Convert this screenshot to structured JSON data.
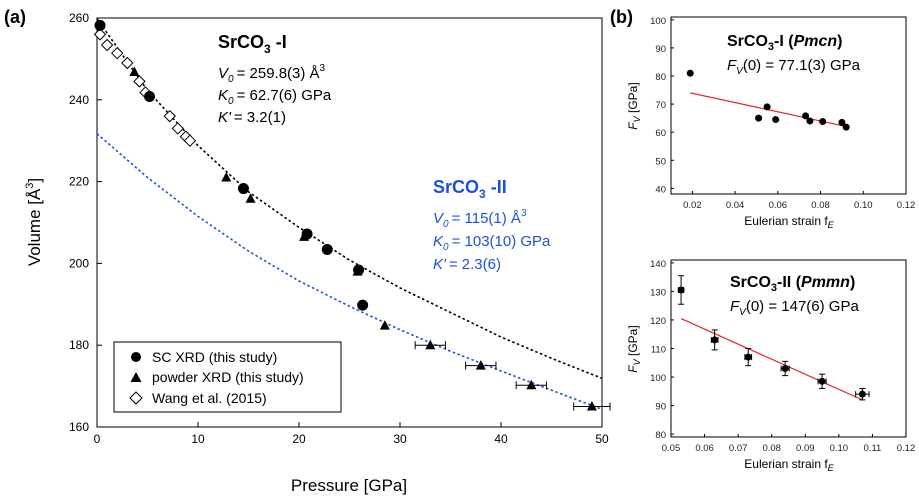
{
  "figure": {
    "panel_a_label": "(a)",
    "panel_b_label": "(b)"
  },
  "chart_data": [
    {
      "id": "a",
      "type": "scatter",
      "xlabel": "Pressure [GPa]",
      "ylabel": "Volume [Å³]",
      "xlim": [
        0,
        50
      ],
      "ylim": [
        160,
        260
      ],
      "xticks": [
        "0",
        "10",
        "20",
        "30",
        "40",
        "50"
      ],
      "yticks": [
        "160",
        "180",
        "200",
        "220",
        "240",
        "260"
      ],
      "annotations": {
        "phase1": {
          "name": "SrCO",
          "sub": "3",
          "suffix": " -I",
          "v0": "= 259.8(3) Å",
          "v0_sup": "3",
          "k0": "= 62.7(6) GPa",
          "kp": "= 3.2(1)"
        },
        "phase2": {
          "name": "SrCO",
          "sub": "3",
          "suffix": " -II",
          "v0": "= 115(1) Å",
          "v0_sup": "3",
          "k0": "= 103(10) GPa",
          "kp": "= 2.3(6)",
          "color": "#1f4fe0"
        },
        "sym_v": "V",
        "sym_v_sub": "0",
        "sym_k": "K",
        "sym_k_sub": "0",
        "sym_kp": "K'"
      },
      "legend": [
        "SC XRD (this study)",
        "powder XRD (this study)",
        "Wang et al. (2015)"
      ],
      "series": [
        {
          "name": "SC XRD (this study)",
          "marker": "circle",
          "points": [
            [
              0.3,
              258.2
            ],
            [
              5.2,
              240.8
            ],
            [
              14.5,
              218.3
            ],
            [
              20.8,
              207.2
            ],
            [
              22.8,
              203.4
            ],
            [
              25.9,
              198.4
            ],
            [
              26.3,
              189.8
            ]
          ]
        },
        {
          "name": "powder XRD (this study)",
          "marker": "triangle",
          "points": [
            [
              3.7,
              246.8
            ],
            [
              12.8,
              221.0
            ],
            [
              15.2,
              215.8
            ],
            [
              20.5,
              206.5
            ],
            [
              25.8,
              198.0
            ],
            [
              28.5,
              184.8
            ],
            [
              33.0,
              180.0
            ],
            [
              38.0,
              175.0
            ],
            [
              43.0,
              170.2
            ],
            [
              49.0,
              165.0
            ]
          ],
          "xerr": [
            0,
            0,
            0,
            0,
            0,
            0,
            1.5,
            1.5,
            1.5,
            1.8
          ]
        },
        {
          "name": "Wang et al. (2015)",
          "marker": "diamond",
          "points": [
            [
              0.3,
              256.0
            ],
            [
              1.0,
              253.4
            ],
            [
              2.0,
              251.4
            ],
            [
              3.0,
              249.0
            ],
            [
              4.2,
              244.5
            ],
            [
              4.8,
              241.8
            ],
            [
              7.2,
              236.0
            ],
            [
              8.0,
              233.0
            ],
            [
              8.8,
              231.0
            ],
            [
              9.2,
              230.0
            ]
          ]
        }
      ],
      "fits": [
        {
          "name": "SrCO3-I BM3",
          "color": "#000000",
          "style": "dotted",
          "curve": [
            [
              0,
              259.8
            ],
            [
              5,
              242.3
            ],
            [
              10,
              228.8
            ],
            [
              15,
              217.5
            ],
            [
              20,
              208.8
            ],
            [
              25,
              200.8
            ],
            [
              30,
              194.0
            ],
            [
              35,
              188.0
            ],
            [
              40,
              182.0
            ],
            [
              45,
              176.8
            ],
            [
              50,
              171.9
            ]
          ]
        },
        {
          "name": "SrCO3-II BM3",
          "color": "#1f4fe0",
          "style": "dotted",
          "curve": [
            [
              0,
              231.7
            ],
            [
              5,
              221.0
            ],
            [
              10,
              211.5
            ],
            [
              15,
              203.0
            ],
            [
              20,
              195.7
            ],
            [
              25,
              189.5
            ],
            [
              30,
              183.8
            ],
            [
              35,
              178.5
            ],
            [
              40,
              173.7
            ],
            [
              45,
              169.0
            ],
            [
              50,
              164.3
            ]
          ]
        }
      ]
    },
    {
      "id": "b1",
      "type": "scatter",
      "title": "SrCO₃-I (Pmcn)",
      "title_parts": {
        "pre": "SrCO",
        "sub": "3",
        "mid": "-I (",
        "it": "Pmcn",
        "post": ")"
      },
      "fv_text": {
        "sym": "F",
        "sub": "V",
        "rest": "(0) = 77.1(3) GPa"
      },
      "xlabel": "Eulerian strain f",
      "xlabel_sub": "E",
      "ylabel": "F",
      "ylabel_sub": "V",
      "ylabel_unit": " [GPa]",
      "xlim": [
        0.01,
        0.12
      ],
      "ylim": [
        38,
        101
      ],
      "xticks": [
        "0.02",
        "0.04",
        "0.06",
        "0.08",
        "0.10",
        "0.12"
      ],
      "yticks": [
        "40",
        "50",
        "60",
        "70",
        "80",
        "90",
        "100"
      ],
      "points": [
        [
          0.019,
          81.0
        ],
        [
          0.051,
          65.0
        ],
        [
          0.055,
          69.0
        ],
        [
          0.059,
          64.5
        ],
        [
          0.073,
          65.8
        ],
        [
          0.075,
          64.0
        ],
        [
          0.081,
          63.8
        ],
        [
          0.09,
          63.5
        ],
        [
          0.092,
          61.8
        ]
      ],
      "fit": [
        [
          0.019,
          74.0
        ],
        [
          0.092,
          62.0
        ]
      ],
      "fit_color": "#e8242c"
    },
    {
      "id": "b2",
      "type": "scatter",
      "title": "SrCO₃-II (Pmmn)",
      "title_parts": {
        "pre": "SrCO",
        "sub": "3",
        "mid": "-II (",
        "it": "Pmmn",
        "post": ")"
      },
      "fv_text": {
        "sym": "F",
        "sub": "V",
        "rest": "(0) = 147(6) GPa"
      },
      "xlabel": "Eulerian strain f",
      "xlabel_sub": "E",
      "ylabel": "F",
      "ylabel_sub": "V",
      "ylabel_unit": " [GPa]",
      "xlim": [
        0.05,
        0.12
      ],
      "ylim": [
        79,
        141
      ],
      "xticks": [
        "0.05",
        "0.06",
        "0.07",
        "0.08",
        "0.09",
        "0.10",
        "0.11",
        "0.12"
      ],
      "yticks": [
        "80",
        "90",
        "100",
        "110",
        "120",
        "130",
        "140"
      ],
      "points": [
        [
          0.053,
          130.5
        ],
        [
          0.063,
          113.0
        ],
        [
          0.073,
          107.0
        ],
        [
          0.084,
          103.0
        ],
        [
          0.095,
          98.5
        ],
        [
          0.107,
          94.0
        ]
      ],
      "yerr": [
        5.0,
        3.5,
        3.0,
        2.5,
        2.5,
        2.0
      ],
      "xerr": [
        0.0008,
        0.001,
        0.001,
        0.0012,
        0.0012,
        0.002
      ],
      "fit": [
        [
          0.053,
          120.5
        ],
        [
          0.107,
          92.0
        ]
      ],
      "fit_color": "#e8242c"
    }
  ]
}
